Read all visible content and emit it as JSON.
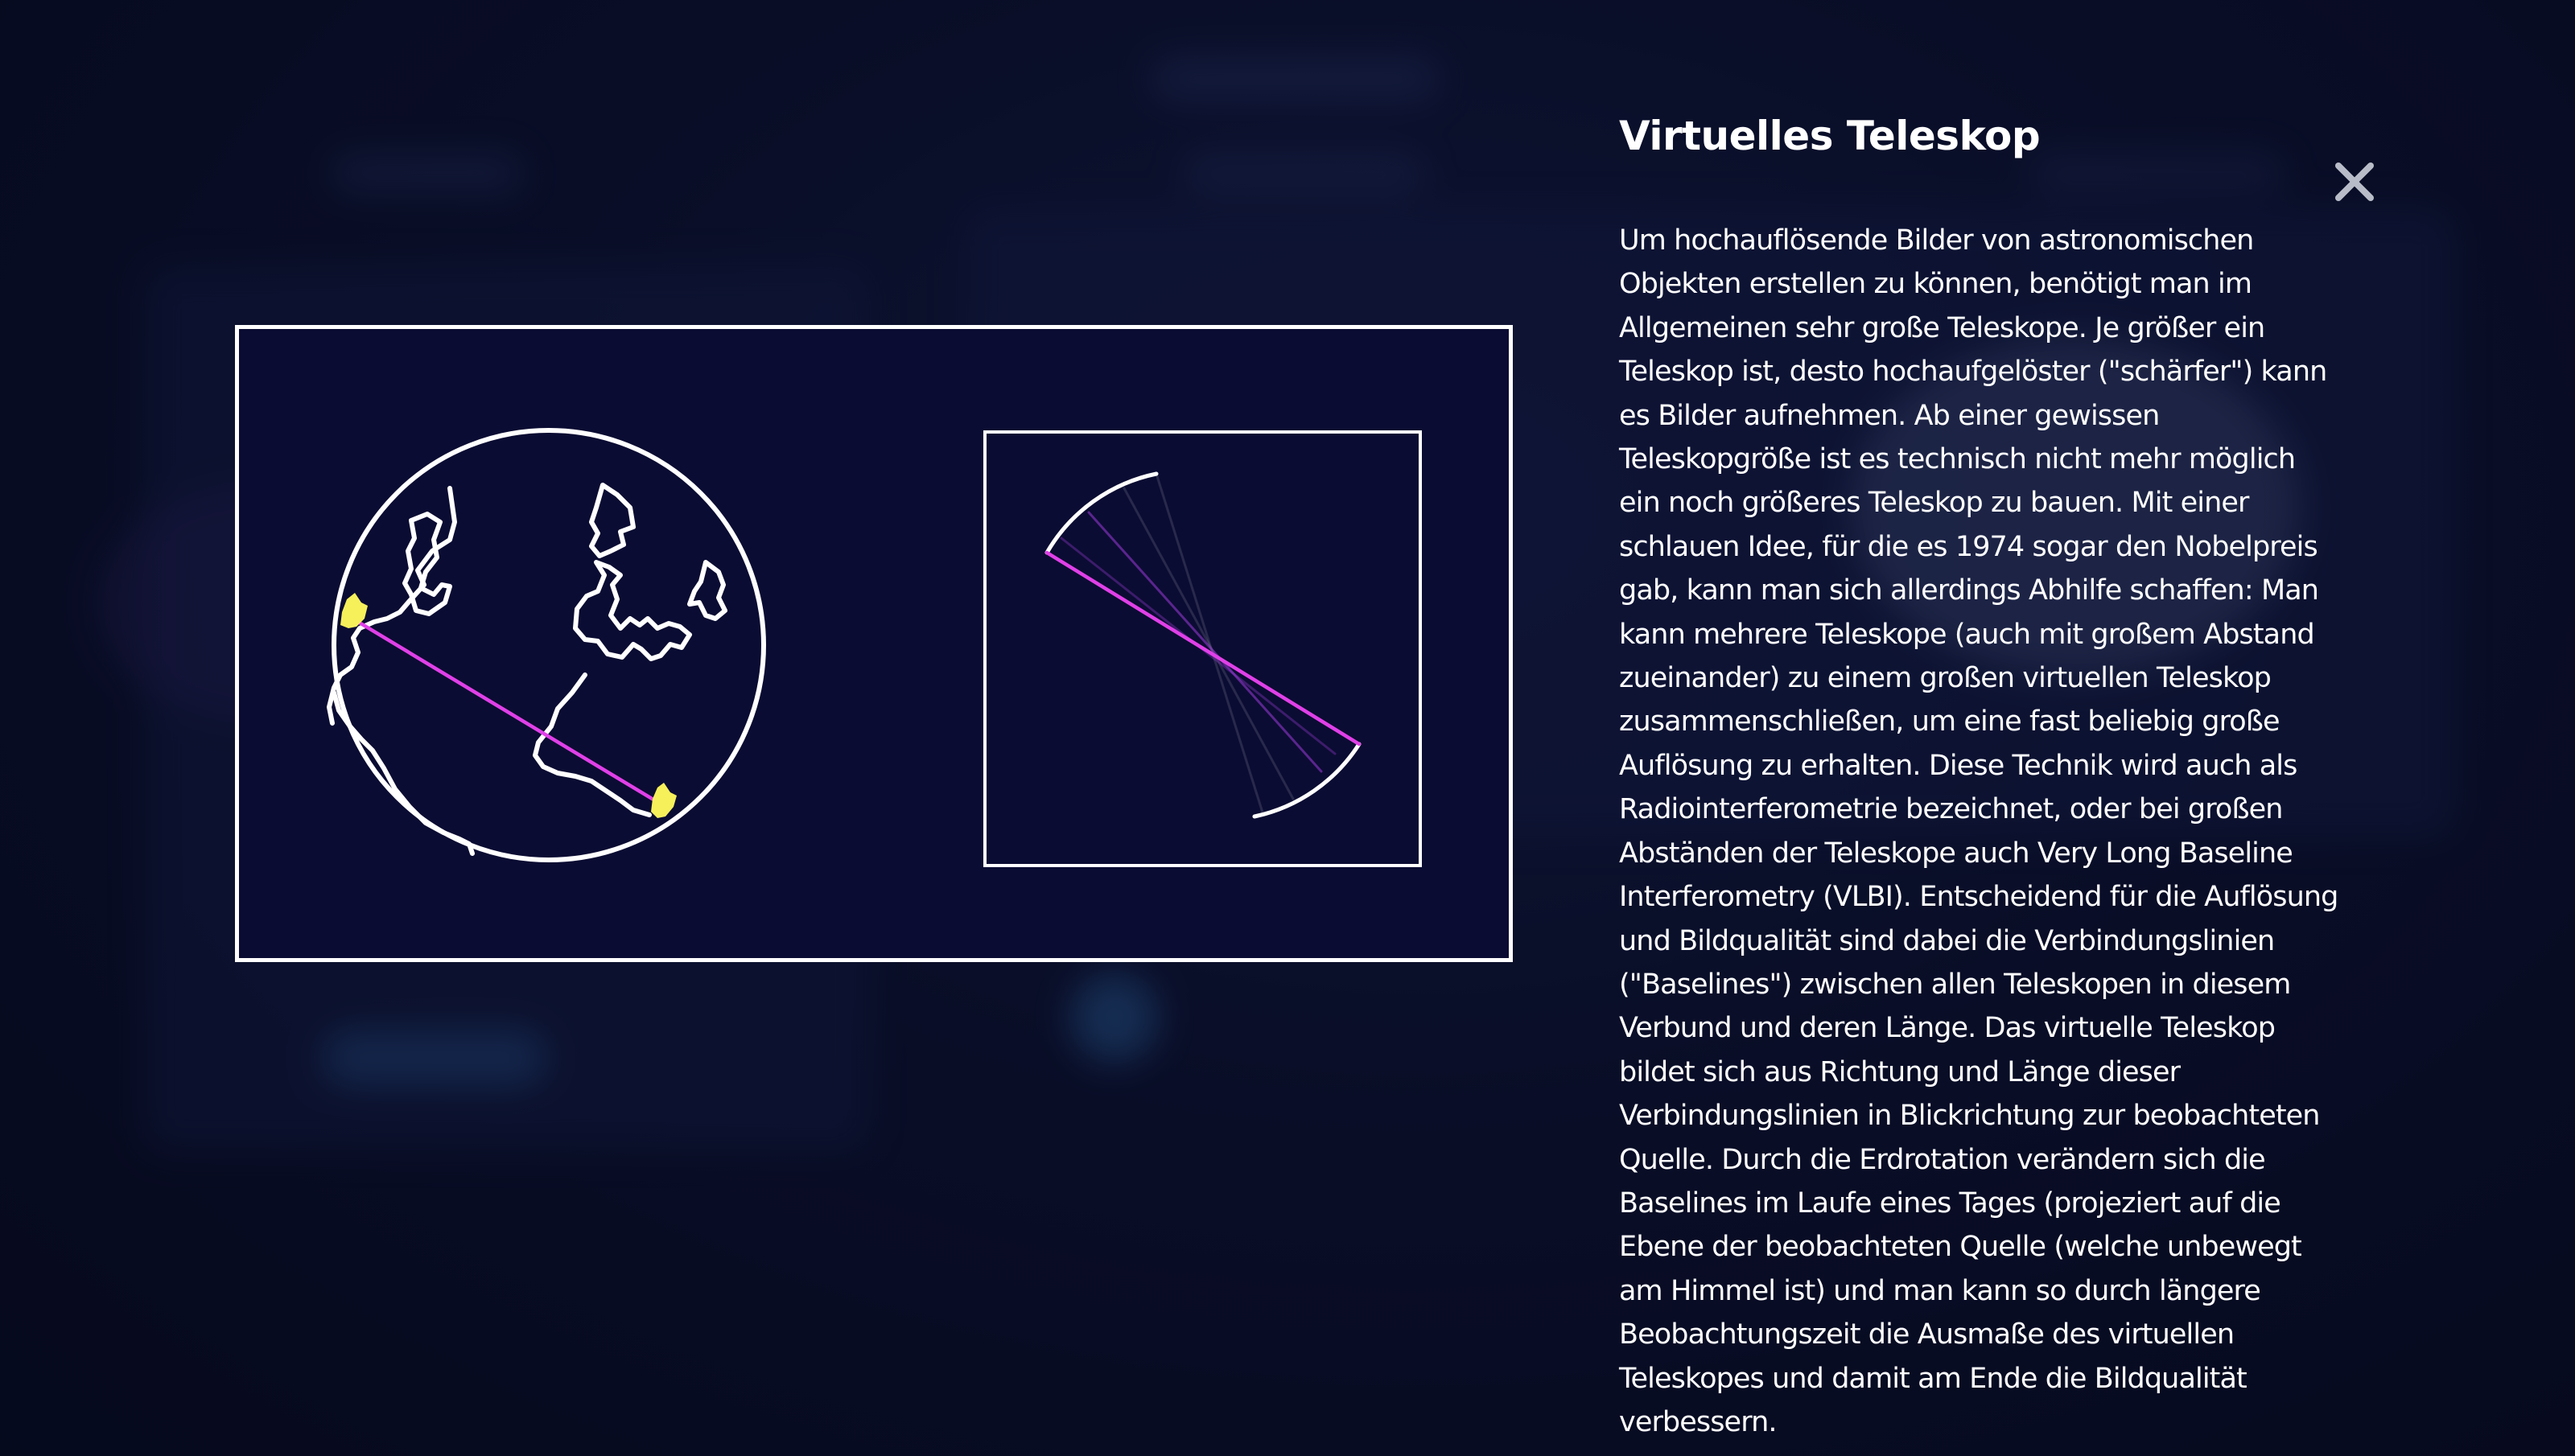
{
  "dialog": {
    "title": "Virtuelles Teleskop",
    "body": "Um hochauflösende Bilder von astronomischen Objekten erstellen zu können, benötigt man im Allgemeinen sehr große Teleskope. Je größer ein Teleskop ist, desto hochaufgelöster (\"schärfer\") kann es Bilder aufnehmen. Ab einer gewissen Teleskopgröße ist es technisch nicht mehr möglich ein noch größeres Teleskop zu bauen. Mit einer schlauen Idee, für die es 1974 sogar den Nobelpreis gab, kann man sich allerdings Abhilfe schaffen: Man kann mehrere Teleskope (auch mit großem Abstand zueinander) zu einem großen virtuellen Teleskop zusammenschließen, um eine fast beliebig große Auflösung zu erhalten. Diese Technik wird auch als Radiointerferometrie bezeichnet, oder bei großen Abständen der Teleskope auch Very Long Baseline Interferometry (VLBI). Entscheidend für die Auflösung und Bildqualität sind dabei die Verbindungslinien (\"Baselines\") zwischen allen Teleskopen in diesem Verbund und deren Länge. Das virtuelle Teleskop bildet sich aus Richtung und Länge dieser Verbindungslinien in Blickrichtung zur beobachteten Quelle. Durch die Erdrotation verändern sich die Baselines im Laufe eines Tages (projeziert auf die Ebene der beobachteten Quelle (welche unbewegt am Himmel ist) und man kann so durch längere Beobachtungszeit die Ausmaße des virtuellen Teleskopes und damit am Ende die Bildqualität verbessern.",
    "close_icon": "close-icon"
  },
  "figure": {
    "earth_icon": "globe-icon",
    "telescope_marker_icon": "telescope-marker-icon",
    "colors": {
      "baseline": "#e040e8",
      "marker": "#f6f05a",
      "outline": "#ffffff",
      "figure_bg": "#0b0c33"
    }
  }
}
